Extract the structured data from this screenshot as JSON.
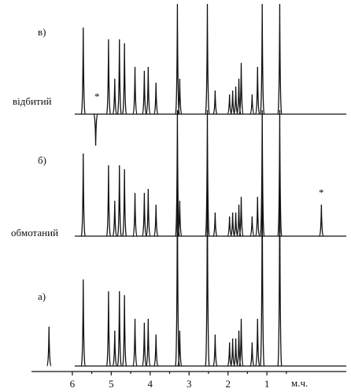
{
  "chart_data": {
    "type": "stick",
    "x_label": "м.ч.",
    "xlim": [
      7.05,
      -1.04
    ],
    "xticks": [
      6,
      5,
      4,
      3,
      2,
      1
    ],
    "series": [
      {
        "name": "в)",
        "label": "відбитий",
        "note": "*",
        "color": "#111111",
        "x": [
          5.72,
          5.4,
          5.07,
          4.91,
          4.79,
          4.66,
          4.39,
          4.15,
          4.05,
          3.85,
          3.3,
          3.24,
          2.53,
          2.33,
          1.96,
          1.88,
          1.8,
          1.72,
          1.66,
          1.38,
          1.24,
          1.12,
          0.67
        ],
        "values": [
          110,
          -40,
          95,
          45,
          95,
          90,
          60,
          55,
          60,
          40,
          140,
          45,
          140,
          30,
          25,
          30,
          35,
          45,
          65,
          25,
          60,
          140,
          140
        ]
      },
      {
        "name": "б)",
        "label": "обмотаний",
        "note": "*",
        "color": "#111111",
        "x": [
          5.72,
          5.07,
          4.91,
          4.79,
          4.66,
          4.39,
          4.15,
          4.05,
          3.85,
          3.3,
          3.24,
          2.53,
          2.33,
          1.96,
          1.88,
          1.8,
          1.72,
          1.66,
          1.38,
          1.24,
          1.12,
          0.67,
          -0.4
        ],
        "values": [
          105,
          90,
          45,
          90,
          85,
          55,
          55,
          60,
          40,
          160,
          45,
          160,
          30,
          25,
          30,
          30,
          40,
          50,
          25,
          50,
          160,
          160,
          40
        ]
      },
      {
        "name": "а)",
        "color": "#111111",
        "x": [
          6.6,
          5.72,
          5.07,
          4.91,
          4.79,
          4.66,
          4.39,
          4.15,
          4.05,
          3.85,
          3.3,
          3.24,
          2.53,
          2.33,
          1.96,
          1.88,
          1.8,
          1.72,
          1.66,
          1.38,
          1.24,
          1.12,
          0.67
        ],
        "values": [
          50,
          110,
          95,
          45,
          95,
          90,
          60,
          55,
          60,
          40,
          230,
          45,
          230,
          40,
          30,
          35,
          35,
          45,
          60,
          30,
          60,
          230,
          230
        ]
      }
    ]
  }
}
